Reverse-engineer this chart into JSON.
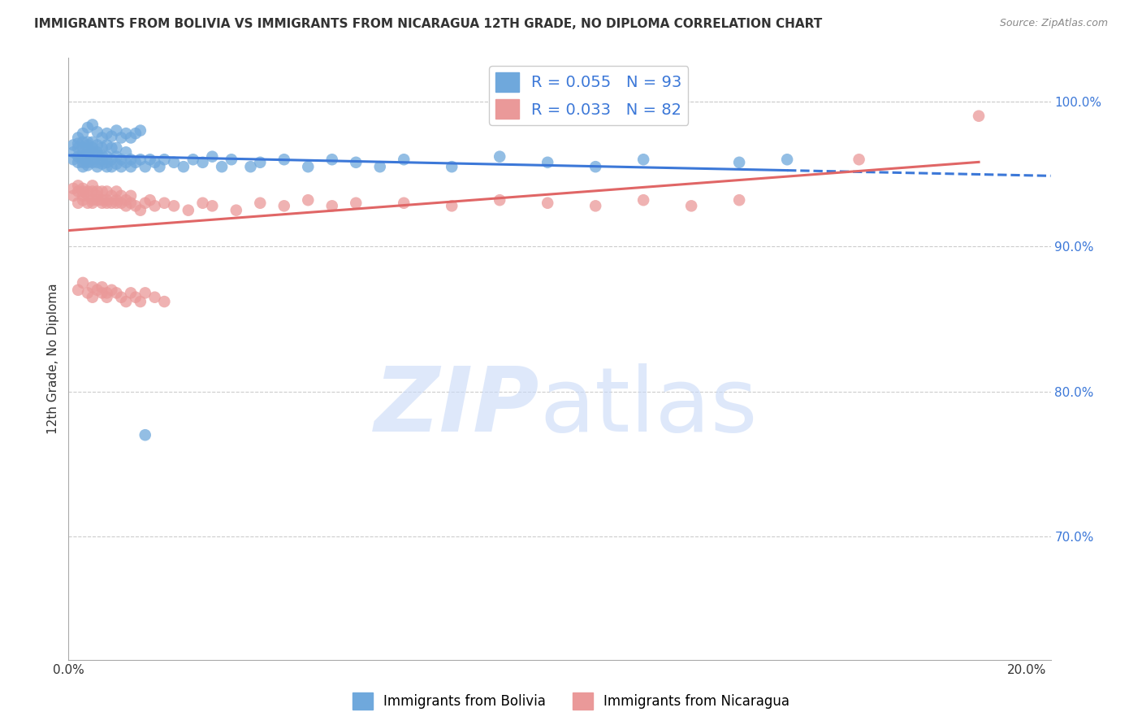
{
  "title": "IMMIGRANTS FROM BOLIVIA VS IMMIGRANTS FROM NICARAGUA 12TH GRADE, NO DIPLOMA CORRELATION CHART",
  "source": "Source: ZipAtlas.com",
  "ylabel": "12th Grade, No Diploma",
  "xlim": [
    0.0,
    0.205
  ],
  "ylim": [
    0.615,
    1.03
  ],
  "bolivia_color": "#6fa8dc",
  "nicaragua_color": "#ea9999",
  "trend_bolivia_color": "#3c78d8",
  "trend_nicaragua_color": "#e06666",
  "legend_r_bolivia": "R = 0.055",
  "legend_n_bolivia": "N = 93",
  "legend_r_nicaragua": "R = 0.033",
  "legend_n_nicaragua": "N = 82",
  "watermark_zip": "ZIP",
  "watermark_atlas": "atlas",
  "background_color": "#ffffff",
  "grid_color": "#cccccc",
  "bolivia_x": [
    0.001,
    0.001,
    0.001,
    0.002,
    0.002,
    0.002,
    0.002,
    0.002,
    0.003,
    0.003,
    0.003,
    0.003,
    0.003,
    0.003,
    0.004,
    0.004,
    0.004,
    0.004,
    0.004,
    0.004,
    0.005,
    0.005,
    0.005,
    0.005,
    0.005,
    0.006,
    0.006,
    0.006,
    0.006,
    0.006,
    0.007,
    0.007,
    0.007,
    0.007,
    0.008,
    0.008,
    0.008,
    0.008,
    0.009,
    0.009,
    0.009,
    0.01,
    0.01,
    0.01,
    0.011,
    0.011,
    0.012,
    0.012,
    0.013,
    0.013,
    0.014,
    0.015,
    0.016,
    0.017,
    0.018,
    0.019,
    0.02,
    0.022,
    0.024,
    0.026,
    0.028,
    0.03,
    0.032,
    0.034,
    0.038,
    0.04,
    0.045,
    0.05,
    0.055,
    0.06,
    0.065,
    0.07,
    0.08,
    0.09,
    0.1,
    0.11,
    0.12,
    0.14,
    0.15,
    0.003,
    0.004,
    0.005,
    0.006,
    0.007,
    0.008,
    0.009,
    0.01,
    0.011,
    0.012,
    0.013,
    0.014,
    0.015,
    0.016
  ],
  "bolivia_y": [
    0.97,
    0.96,
    0.965,
    0.975,
    0.968,
    0.958,
    0.962,
    0.971,
    0.972,
    0.964,
    0.958,
    0.955,
    0.968,
    0.961,
    0.97,
    0.963,
    0.956,
    0.965,
    0.958,
    0.972,
    0.965,
    0.958,
    0.972,
    0.96,
    0.968,
    0.963,
    0.958,
    0.97,
    0.955,
    0.965,
    0.963,
    0.957,
    0.968,
    0.96,
    0.955,
    0.962,
    0.97,
    0.958,
    0.96,
    0.968,
    0.955,
    0.962,
    0.957,
    0.968,
    0.96,
    0.955,
    0.958,
    0.965,
    0.96,
    0.955,
    0.958,
    0.96,
    0.955,
    0.96,
    0.958,
    0.955,
    0.96,
    0.958,
    0.955,
    0.96,
    0.958,
    0.962,
    0.955,
    0.96,
    0.955,
    0.958,
    0.96,
    0.955,
    0.96,
    0.958,
    0.955,
    0.96,
    0.955,
    0.962,
    0.958,
    0.955,
    0.96,
    0.958,
    0.96,
    0.978,
    0.982,
    0.984,
    0.979,
    0.975,
    0.978,
    0.976,
    0.98,
    0.975,
    0.978,
    0.975,
    0.978,
    0.98,
    0.77
  ],
  "nicaragua_x": [
    0.001,
    0.001,
    0.002,
    0.002,
    0.002,
    0.003,
    0.003,
    0.003,
    0.003,
    0.004,
    0.004,
    0.004,
    0.005,
    0.005,
    0.005,
    0.005,
    0.006,
    0.006,
    0.006,
    0.007,
    0.007,
    0.007,
    0.008,
    0.008,
    0.008,
    0.009,
    0.009,
    0.01,
    0.01,
    0.01,
    0.011,
    0.011,
    0.012,
    0.012,
    0.013,
    0.013,
    0.014,
    0.015,
    0.016,
    0.017,
    0.018,
    0.02,
    0.022,
    0.025,
    0.028,
    0.03,
    0.035,
    0.04,
    0.045,
    0.05,
    0.055,
    0.06,
    0.07,
    0.08,
    0.09,
    0.1,
    0.11,
    0.12,
    0.13,
    0.14,
    0.002,
    0.003,
    0.004,
    0.005,
    0.005,
    0.006,
    0.007,
    0.007,
    0.008,
    0.008,
    0.009,
    0.01,
    0.011,
    0.012,
    0.013,
    0.014,
    0.015,
    0.016,
    0.018,
    0.02,
    0.19,
    0.165
  ],
  "nicaragua_y": [
    0.935,
    0.94,
    0.93,
    0.938,
    0.942,
    0.932,
    0.938,
    0.935,
    0.94,
    0.93,
    0.938,
    0.935,
    0.932,
    0.938,
    0.942,
    0.93,
    0.932,
    0.938,
    0.935,
    0.932,
    0.938,
    0.93,
    0.93,
    0.938,
    0.932,
    0.93,
    0.935,
    0.93,
    0.932,
    0.938,
    0.93,
    0.935,
    0.928,
    0.932,
    0.93,
    0.935,
    0.928,
    0.925,
    0.93,
    0.932,
    0.928,
    0.93,
    0.928,
    0.925,
    0.93,
    0.928,
    0.925,
    0.93,
    0.928,
    0.932,
    0.928,
    0.93,
    0.93,
    0.928,
    0.932,
    0.93,
    0.928,
    0.932,
    0.928,
    0.932,
    0.87,
    0.875,
    0.868,
    0.872,
    0.865,
    0.87,
    0.868,
    0.872,
    0.868,
    0.865,
    0.87,
    0.868,
    0.865,
    0.862,
    0.868,
    0.865,
    0.862,
    0.868,
    0.865,
    0.862,
    0.99,
    0.96
  ]
}
